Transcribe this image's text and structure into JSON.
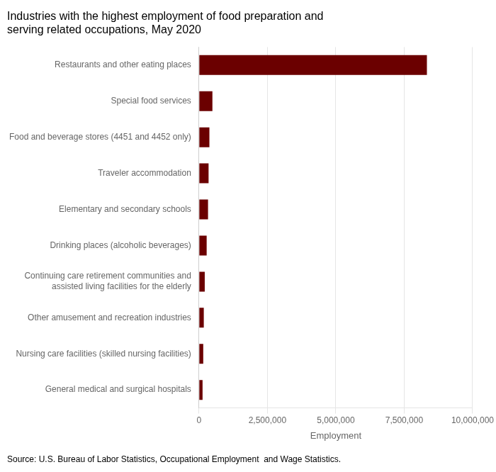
{
  "chart_data": {
    "type": "bar",
    "orientation": "horizontal",
    "title": "Industries with the highest employment of food preparation and\nserving related occupations, May 2020",
    "categories": [
      "General medical and surgical hospitals",
      "Nursing care facilities (skilled nursing facilities)",
      "Other amusement and recreation industries",
      "Continuing care retirement communities and\nassisted living facilities for the elderly",
      "Drinking places (alcoholic beverages)",
      "Elementary and secondary schools",
      "Traveler accommodation",
      "Food and beverage stores (4451 and 4452 only)",
      "Special food services",
      "Restaurants and other eating places"
    ],
    "values": [
      130000,
      155000,
      175000,
      210000,
      280000,
      330000,
      350000,
      380000,
      490000,
      8330000
    ],
    "color": "#6B0000",
    "xlabel": "Employment",
    "xlim": [
      0,
      10000000
    ],
    "xticks": [
      0,
      {
        "value": 2500000,
        "label": "2,500,000"
      },
      {
        "value": 5000000,
        "label": "5,000,000"
      },
      {
        "value": 7500000,
        "label": "7,500,000"
      },
      {
        "value": 10000000,
        "label": "10,000,000"
      }
    ],
    "grid": true,
    "annotation": "Source: U.S. Bureau of Labor Statistics, Occupational Employment  and Wage Statistics."
  }
}
